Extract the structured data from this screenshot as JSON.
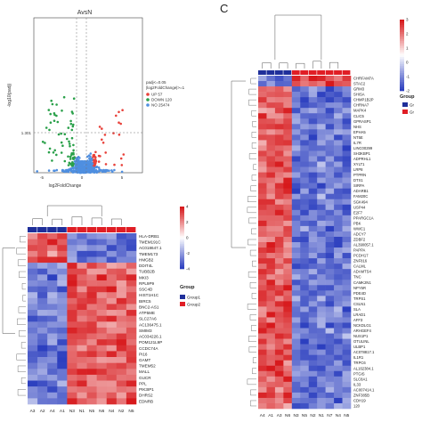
{
  "panel_label": "C",
  "volcano": {
    "title": "AvsN",
    "ylabel": "-log10(padj)",
    "xlabel": "log2FoldChange",
    "x_ticks": [
      "-5",
      "0",
      "5"
    ],
    "y_ticks": [
      "1.301"
    ],
    "x_range": [
      -5.5,
      6.5
    ],
    "legend_title": "padj<=0.05\n|log2FoldChange|>=1",
    "legend_items": [
      {
        "label": "UP 57",
        "color": "#e8413a"
      },
      {
        "label": "DOWN 120",
        "color": "#2aa04a"
      },
      {
        "label": "NO 25474",
        "color": "#4f8fe0"
      }
    ]
  },
  "heatmap_small": {
    "columns": [
      "A3",
      "A2",
      "A4",
      "A1",
      "N3",
      "N1",
      "N5",
      "N6",
      "N4",
      "N2",
      "N5"
    ],
    "genes": [
      "HLA-DRB1",
      "TMEM191C",
      "AC018647.1",
      "TMEM173",
      "HMGB2",
      "DDIT4L",
      "TUBB2B",
      "MKI3",
      "RPL9P9",
      "SSC4D",
      "HIST1H1C",
      "BIRC5",
      "BNC2-AS1",
      "ATP5ME",
      "SLC27A6",
      "AC136475.1",
      "SMIM3",
      "AC034226.1",
      "POM121L9P",
      "CCDC74A",
      "PI16",
      "GAMT",
      "TMEM52",
      "MALL",
      "GUCR",
      "PPL",
      "PIK3IP1",
      "DHRS2",
      "EDNRB"
    ],
    "scale_ticks": [
      "4",
      "2",
      "0",
      "-2",
      "-4"
    ],
    "group_title": "Group",
    "group_items": [
      "Group1",
      "Group2"
    ]
  },
  "heatmap_large": {
    "columns": [
      "A4",
      "A1",
      "A3",
      "N6",
      "N3",
      "N5",
      "N2",
      "N1",
      "N7",
      "N4",
      "N5"
    ],
    "genes": [
      "CHRFAM7A",
      "STAC2",
      "GRM3",
      "SHISA",
      "CHMP1B2P",
      "CHRNA7",
      "MAPK4",
      "CLIC5",
      "GPRASP1",
      "NHS",
      "EPHA5",
      "NT5E",
      "IL7R",
      "LINC00299",
      "SH3KBP1",
      "ADPRHL1",
      "XYLT1",
      "LRP8",
      "PTPRN",
      "DTX1",
      "SIRPA",
      "ADARB1",
      "FAM20C",
      "SGK494",
      "USP44",
      "E2F7",
      "PPARGC1A",
      "PBK",
      "WWC1",
      "ADCY7",
      "ZDBF2",
      "AL390057.1",
      "PAPPA",
      "PCDH17",
      "ZNF816",
      "CALML",
      "ADAMTS4",
      "TNC",
      "CAMK2N1",
      "NPY5R",
      "PDE4D",
      "TRPS1",
      "CSLN1",
      "SLA",
      "LRAD1",
      "AFF3",
      "NCKDLG1",
      "ARHGEF4",
      "NUS1P1",
      "OTULINL",
      "ULBP1",
      "AC078817.1",
      "IL1R1",
      "TRPC6",
      "AL162384.1",
      "PTGIS",
      "SLC8A1",
      "IL33",
      "AC007414.1",
      "ZNF385B",
      "CDH19",
      "120"
    ],
    "scale_ticks": [
      "3",
      "2",
      "1",
      "0",
      "-1",
      "-2"
    ],
    "group_title": "Group",
    "group_items": [
      "Gr",
      "Gr"
    ]
  },
  "colors": {
    "high": "#d7191c",
    "mid": "#ffffff",
    "low": "#2c3fbf",
    "group1": "#1f2f9a",
    "group2": "#e01e25"
  }
}
